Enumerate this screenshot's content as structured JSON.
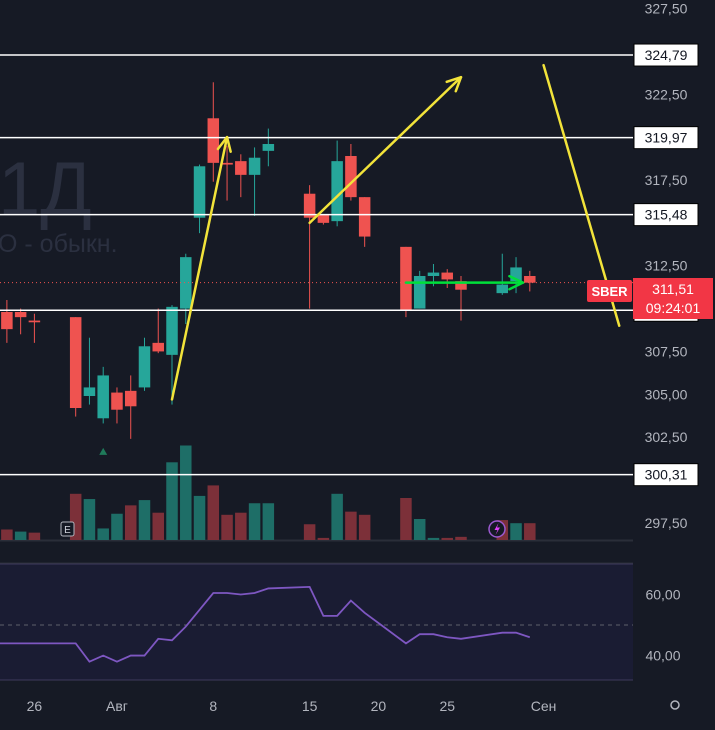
{
  "colors": {
    "background": "#161a25",
    "up": "#26a69a",
    "down": "#ef5350",
    "volume_up": "#1e6e67",
    "volume_down": "#7c3039",
    "rsi": "#7e57c2",
    "annotation": "#f2e33a",
    "arrow_green": "#00e03a",
    "level_line": "#ffffff",
    "axis_text": "#b2b5be",
    "price_tag": "#f23645"
  },
  "watermark": {
    "interval": "1Д",
    "subtitle": "О - обыкн."
  },
  "price_tag": {
    "ticker": "SBER",
    "price": "311,51",
    "countdown": "09:24:01"
  },
  "indicator_badge": "E",
  "chart_data": [
    {
      "type": "candlestick",
      "title": "",
      "x_axis": {
        "ticks": [
          {
            "label": "26",
            "day": 26
          },
          {
            "label": "Авг",
            "day": 32
          },
          {
            "label": "8",
            "day": 39
          },
          {
            "label": "15",
            "day": 46
          },
          {
            "label": "20",
            "day": 51
          },
          {
            "label": "25",
            "day": 56
          },
          {
            "label": "Сен",
            "day": 63
          }
        ],
        "range": [
          23.5,
          69.5
        ]
      },
      "y_axis": {
        "range": [
          296.5,
          328.0
        ],
        "ticks": [
          "327,50",
          "322,50",
          "317,50",
          "312,50",
          "307,50",
          "305,00",
          "302,50",
          "297,50"
        ],
        "tick_values": [
          327.5,
          322.5,
          317.5,
          312.5,
          307.5,
          305.0,
          302.5,
          297.5
        ]
      },
      "candles": [
        {
          "day": 23,
          "o": 311.5,
          "h": 312.5,
          "l": 306.0,
          "c": 307.0
        },
        {
          "day": 24,
          "o": 309.8,
          "h": 310.5,
          "l": 308.0,
          "c": 308.8
        },
        {
          "day": 25,
          "o": 309.8,
          "h": 310.0,
          "l": 308.5,
          "c": 309.5
        },
        {
          "day": 26,
          "o": 309.3,
          "h": 309.7,
          "l": 308.0,
          "c": 309.2
        },
        {
          "day": 29,
          "o": 309.5,
          "h": 309.5,
          "l": 303.7,
          "c": 304.2
        },
        {
          "day": 30,
          "o": 304.9,
          "h": 308.3,
          "l": 304.4,
          "c": 305.4
        },
        {
          "day": 31,
          "o": 303.6,
          "h": 306.6,
          "l": 303.3,
          "c": 306.1
        },
        {
          "day": 32,
          "o": 305.1,
          "h": 305.4,
          "l": 303.3,
          "c": 304.1
        },
        {
          "day": 33,
          "o": 305.2,
          "h": 306.1,
          "l": 302.4,
          "c": 304.3
        },
        {
          "day": 34,
          "o": 305.4,
          "h": 308.3,
          "l": 305.2,
          "c": 307.8
        },
        {
          "day": 35,
          "o": 308.0,
          "h": 310.0,
          "l": 307.4,
          "c": 307.5
        },
        {
          "day": 36,
          "o": 307.3,
          "h": 310.2,
          "l": 304.4,
          "c": 310.1
        },
        {
          "day": 37,
          "o": 310.0,
          "h": 313.2,
          "l": 309.1,
          "c": 313.0
        },
        {
          "day": 38,
          "o": 315.3,
          "h": 318.4,
          "l": 314.4,
          "c": 318.3
        },
        {
          "day": 39,
          "o": 321.1,
          "h": 323.2,
          "l": 317.4,
          "c": 318.5
        },
        {
          "day": 40,
          "o": 318.5,
          "h": 319.5,
          "l": 316.3,
          "c": 318.4
        },
        {
          "day": 41,
          "o": 318.6,
          "h": 319.0,
          "l": 316.5,
          "c": 317.8
        },
        {
          "day": 42,
          "o": 317.8,
          "h": 319.4,
          "l": 315.4,
          "c": 318.8
        },
        {
          "day": 43,
          "o": 319.2,
          "h": 320.5,
          "l": 318.3,
          "c": 319.6
        },
        {
          "day": 46,
          "o": 316.7,
          "h": 317.2,
          "l": 310.0,
          "c": 315.3
        },
        {
          "day": 47,
          "o": 315.5,
          "h": 315.5,
          "l": 314.9,
          "c": 315.0
        },
        {
          "day": 48,
          "o": 315.1,
          "h": 319.8,
          "l": 314.8,
          "c": 318.6
        },
        {
          "day": 49,
          "o": 318.9,
          "h": 319.6,
          "l": 316.3,
          "c": 316.5
        },
        {
          "day": 50,
          "o": 316.5,
          "h": 316.5,
          "l": 313.6,
          "c": 314.2
        },
        {
          "day": 53,
          "o": 313.6,
          "h": 313.6,
          "l": 309.5,
          "c": 309.9
        },
        {
          "day": 54,
          "o": 310.0,
          "h": 312.2,
          "l": 310.0,
          "c": 311.9
        },
        {
          "day": 55,
          "o": 311.9,
          "h": 312.6,
          "l": 311.3,
          "c": 312.1
        },
        {
          "day": 56,
          "o": 312.1,
          "h": 312.3,
          "l": 311.2,
          "c": 311.7
        },
        {
          "day": 57,
          "o": 311.6,
          "h": 311.9,
          "l": 309.3,
          "c": 311.1
        },
        {
          "day": 60,
          "o": 310.9,
          "h": 313.2,
          "l": 310.8,
          "c": 311.4
        },
        {
          "day": 61,
          "o": 311.6,
          "h": 313.0,
          "l": 310.9,
          "c": 312.4
        },
        {
          "day": 62,
          "o": 311.9,
          "h": 312.2,
          "l": 311.0,
          "c": 311.51
        }
      ],
      "volume": [
        {
          "day": 23,
          "v": 0.48,
          "dir": "down"
        },
        {
          "day": 24,
          "v": 0.1,
          "dir": "down"
        },
        {
          "day": 25,
          "v": 0.08,
          "dir": "up"
        },
        {
          "day": 26,
          "v": 0.07,
          "dir": "down"
        },
        {
          "day": 29,
          "v": 0.44,
          "dir": "down"
        },
        {
          "day": 30,
          "v": 0.39,
          "dir": "up"
        },
        {
          "day": 31,
          "v": 0.11,
          "dir": "up"
        },
        {
          "day": 32,
          "v": 0.25,
          "dir": "up"
        },
        {
          "day": 33,
          "v": 0.33,
          "dir": "down"
        },
        {
          "day": 34,
          "v": 0.38,
          "dir": "up"
        },
        {
          "day": 35,
          "v": 0.26,
          "dir": "down"
        },
        {
          "day": 36,
          "v": 0.74,
          "dir": "up"
        },
        {
          "day": 37,
          "v": 0.9,
          "dir": "up"
        },
        {
          "day": 38,
          "v": 0.42,
          "dir": "up"
        },
        {
          "day": 39,
          "v": 0.52,
          "dir": "down"
        },
        {
          "day": 40,
          "v": 0.24,
          "dir": "down"
        },
        {
          "day": 41,
          "v": 0.26,
          "dir": "down"
        },
        {
          "day": 42,
          "v": 0.35,
          "dir": "up"
        },
        {
          "day": 43,
          "v": 0.35,
          "dir": "up"
        },
        {
          "day": 46,
          "v": 0.15,
          "dir": "down"
        },
        {
          "day": 47,
          "v": 0.02,
          "dir": "down"
        },
        {
          "day": 48,
          "v": 0.44,
          "dir": "up"
        },
        {
          "day": 49,
          "v": 0.27,
          "dir": "down"
        },
        {
          "day": 50,
          "v": 0.24,
          "dir": "down"
        },
        {
          "day": 53,
          "v": 0.4,
          "dir": "down"
        },
        {
          "day": 54,
          "v": 0.2,
          "dir": "up"
        },
        {
          "day": 55,
          "v": 0.02,
          "dir": "up"
        },
        {
          "day": 56,
          "v": 0.02,
          "dir": "down"
        },
        {
          "day": 57,
          "v": 0.03,
          "dir": "down"
        },
        {
          "day": 60,
          "v": 0.19,
          "dir": "down"
        },
        {
          "day": 61,
          "v": 0.16,
          "dir": "up"
        },
        {
          "day": 62,
          "v": 0.16,
          "dir": "down"
        }
      ],
      "levels": [
        {
          "label": "324,79",
          "value": 324.79
        },
        {
          "label": "319,97",
          "value": 319.97
        },
        {
          "label": "315,48",
          "value": 315.48
        },
        {
          "label": "309,90",
          "value": 309.9
        },
        {
          "label": "300,31",
          "value": 300.31
        }
      ],
      "current_price": 311.51,
      "annotations": [
        {
          "kind": "arrow",
          "color": "annotation",
          "from": {
            "day": 36,
            "price": 304.7
          },
          "to": {
            "day": 40,
            "price": 320.0
          }
        },
        {
          "kind": "arrow",
          "color": "annotation",
          "from": {
            "day": 46,
            "price": 315.0
          },
          "to": {
            "day": 57,
            "price": 323.5
          }
        },
        {
          "kind": "line",
          "color": "annotation",
          "from": {
            "day": 63,
            "price": 324.2
          },
          "to": {
            "day": 68.5,
            "price": 309.0
          }
        },
        {
          "kind": "arrow",
          "color": "arrow_green",
          "from": {
            "day": 53,
            "price": 311.51
          },
          "to": {
            "day": 61.5,
            "price": 311.51
          }
        }
      ],
      "marker": {
        "day": 31,
        "price": 302.4
      }
    },
    {
      "type": "line",
      "title": "",
      "y_axis": {
        "ticks": [
          "60,00",
          "40,00"
        ],
        "tick_values": [
          60,
          40
        ],
        "range": [
          32,
          70
        ]
      },
      "reference_lines": [
        50
      ],
      "series": [
        {
          "x": [
            23,
            24,
            25,
            26,
            29,
            30,
            31,
            32,
            33,
            34,
            35,
            36,
            37,
            38,
            39,
            40,
            41,
            42,
            43,
            46,
            47,
            48,
            49,
            50,
            53,
            54,
            55,
            56,
            57,
            60,
            61,
            62
          ],
          "values": [
            44,
            44,
            44,
            44,
            44,
            38,
            40,
            38,
            40,
            40,
            45.5,
            45,
            49.5,
            55,
            60.5,
            60.5,
            60,
            60.5,
            62,
            62.5,
            53,
            53,
            58,
            54,
            44,
            47,
            47,
            46,
            45.5,
            47.5,
            47.5,
            46
          ]
        }
      ]
    }
  ]
}
